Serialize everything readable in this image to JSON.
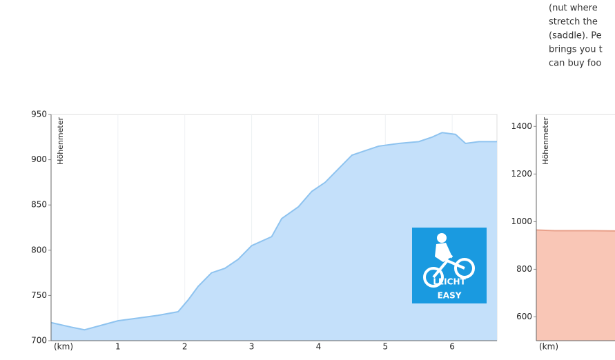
{
  "chart_data": [
    {
      "type": "area",
      "y_label": "Höhenmeter",
      "x_label": "(km)",
      "x": [
        0,
        0.3,
        0.5,
        0.8,
        1.0,
        1.3,
        1.6,
        1.9,
        2.05,
        2.2,
        2.4,
        2.6,
        2.8,
        3.0,
        3.3,
        3.45,
        3.7,
        3.9,
        4.1,
        4.3,
        4.5,
        4.7,
        4.9,
        5.2,
        5.5,
        5.7,
        5.85,
        6.05,
        6.2,
        6.4,
        6.67
      ],
      "values": [
        720,
        715,
        712,
        718,
        722,
        725,
        728,
        732,
        745,
        760,
        775,
        780,
        790,
        805,
        815,
        835,
        848,
        865,
        875,
        890,
        905,
        910,
        915,
        918,
        920,
        925,
        930,
        928,
        918,
        920,
        920
      ],
      "color": "#c4e0fa",
      "line_color": "#8ec3ef",
      "xlim": [
        0,
        6.67
      ],
      "ylim": [
        700,
        950
      ],
      "xticks": [
        1,
        2,
        3,
        4,
        5,
        6
      ],
      "yticks": [
        700,
        750,
        800,
        850,
        900,
        950
      ],
      "grid": true
    },
    {
      "type": "area",
      "y_label": "Höhenmeter",
      "x_label": "(km)",
      "x": [
        0,
        0.1,
        0.3,
        0.5,
        0.7
      ],
      "values": [
        965,
        962,
        962,
        960,
        955
      ],
      "color": "#f9c6b6",
      "line_color": "#e9a08a",
      "xlim": [
        0,
        1.2
      ],
      "ylim": [
        500,
        1450
      ],
      "xticks": [],
      "yticks": [
        600,
        800,
        1000,
        1200,
        1400
      ],
      "grid": true
    }
  ],
  "sidebar_text": [
    "(nut where",
    "stretch the",
    "(saddle). Pe",
    "brings you t",
    "can buy foo"
  ],
  "badge": {
    "line1": "LEICHT",
    "line2": "EASY"
  }
}
